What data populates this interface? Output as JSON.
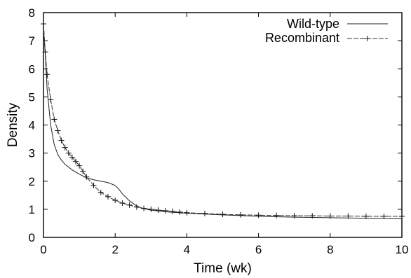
{
  "chart_data": {
    "type": "line",
    "xlabel": "Time (wk)",
    "ylabel": "Density",
    "xlim": [
      0,
      10
    ],
    "ylim": [
      0,
      8
    ],
    "xticks": [
      0,
      2,
      4,
      6,
      8,
      10
    ],
    "yticks": [
      0,
      1,
      2,
      3,
      4,
      5,
      6,
      7,
      8
    ],
    "legend_position": "top-right",
    "series": [
      {
        "name": "Wild-type",
        "style": "solid",
        "markers": false,
        "x": [
          0,
          0.05,
          0.1,
          0.2,
          0.3,
          0.4,
          0.5,
          0.6,
          0.8,
          1.0,
          1.2,
          1.4,
          1.6,
          1.8,
          2.0,
          2.1,
          2.2,
          2.4,
          2.6,
          2.8,
          3.0,
          3.5,
          4.0,
          5.0,
          6.0,
          7.0,
          8.0,
          9.0,
          10.0
        ],
        "y": [
          7.4,
          6.5,
          5.3,
          4.0,
          3.3,
          2.95,
          2.75,
          2.6,
          2.4,
          2.25,
          2.12,
          2.05,
          2.0,
          1.95,
          1.85,
          1.72,
          1.55,
          1.3,
          1.12,
          1.02,
          0.97,
          0.9,
          0.86,
          0.8,
          0.75,
          0.72,
          0.7,
          0.68,
          0.66
        ]
      },
      {
        "name": "Recombinant",
        "style": "dashed",
        "markers": true,
        "x": [
          0,
          0.05,
          0.1,
          0.2,
          0.3,
          0.4,
          0.5,
          0.6,
          0.7,
          0.8,
          0.9,
          1.0,
          1.1,
          1.2,
          1.4,
          1.6,
          1.8,
          2.0,
          2.2,
          2.4,
          2.6,
          2.8,
          3.0,
          3.2,
          3.4,
          3.6,
          3.8,
          4.0,
          4.5,
          5.0,
          5.5,
          6.0,
          6.5,
          7.0,
          7.5,
          8.0,
          8.5,
          9.0,
          9.5,
          10.0
        ],
        "y": [
          7.6,
          6.6,
          5.8,
          4.9,
          4.2,
          3.8,
          3.45,
          3.2,
          3.0,
          2.85,
          2.7,
          2.55,
          2.35,
          2.15,
          1.85,
          1.6,
          1.45,
          1.32,
          1.22,
          1.15,
          1.08,
          1.03,
          1.0,
          0.97,
          0.95,
          0.93,
          0.9,
          0.88,
          0.85,
          0.82,
          0.8,
          0.79,
          0.78,
          0.77,
          0.77,
          0.76,
          0.76,
          0.75,
          0.75,
          0.75
        ]
      }
    ]
  }
}
